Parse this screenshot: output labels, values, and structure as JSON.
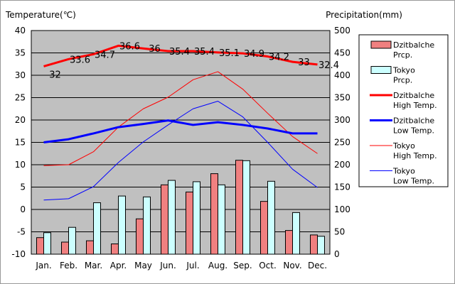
{
  "chart_data": {
    "type": "bar+line",
    "left_axis_title": "Temperature(℃)",
    "right_axis_title": "Precipitation(mm)",
    "categories": [
      "Jan.",
      "Feb.",
      "Mar.",
      "Apr.",
      "May",
      "Jun.",
      "Jul.",
      "Aug.",
      "Sep.",
      "Oct.",
      "Nov.",
      "Dec."
    ],
    "y_left": {
      "min": -10,
      "max": 40,
      "step": 5,
      "ticks": [
        "40",
        "35",
        "30",
        "25",
        "20",
        "15",
        "10",
        "5",
        "0",
        "-5",
        "-10"
      ]
    },
    "y_right": {
      "min": 0,
      "max": 500,
      "step": 50,
      "ticks": [
        "500",
        "450",
        "400",
        "350",
        "300",
        "250",
        "200",
        "150",
        "100",
        "50",
        "0"
      ]
    },
    "grid": true,
    "legend_placement": "right",
    "series": [
      {
        "name": "Dzitbalche Prcp.",
        "kind": "bar",
        "axis": "right",
        "color": "#f08080",
        "values": [
          37,
          27,
          30,
          23,
          79,
          155,
          139,
          180,
          210,
          118,
          53,
          43
        ]
      },
      {
        "name": "Tokyo Prcp.",
        "kind": "bar",
        "axis": "right",
        "color": "#ccffff",
        "values": [
          48,
          60,
          115,
          130,
          128,
          165,
          162,
          155,
          209,
          163,
          93,
          40
        ]
      },
      {
        "name": "Dzitbalche High Temp.",
        "kind": "line",
        "axis": "left",
        "color": "#ff0000",
        "width": 3,
        "values": [
          32,
          33.6,
          34.7,
          36.6,
          36,
          35.4,
          35.4,
          35.1,
          34.9,
          34.2,
          33,
          32.4
        ],
        "labels": [
          "32",
          "33.6",
          "34.7",
          "36.6",
          "36",
          "35.4",
          "35.4",
          "35.1",
          "34.9",
          "34.2",
          "33",
          "32.4"
        ]
      },
      {
        "name": "Dzitbalche Low Temp.",
        "kind": "line",
        "axis": "left",
        "color": "#0000ff",
        "width": 3,
        "values": [
          15,
          15.7,
          17,
          18.4,
          19.1,
          19.9,
          18.9,
          19.5,
          18.9,
          18.1,
          17,
          17
        ]
      },
      {
        "name": "Tokyo High Temp.",
        "kind": "line",
        "axis": "left",
        "color": "#ff0000",
        "width": 1,
        "values": [
          9.8,
          10,
          12.9,
          18.4,
          22.5,
          25.1,
          29,
          30.8,
          26.9,
          21.5,
          16.3,
          12.5
        ]
      },
      {
        "name": "Tokyo Low Temp.",
        "kind": "line",
        "axis": "left",
        "color": "#0000ff",
        "width": 1,
        "values": [
          2.1,
          2.4,
          5.1,
          10.5,
          15.1,
          18.9,
          22.5,
          24.2,
          20.7,
          15,
          9,
          4.9
        ]
      }
    ],
    "legend": [
      {
        "line1": "Dzitbalche",
        "line2": "Prcp.",
        "swatch": "bar",
        "color": "#f08080"
      },
      {
        "line1": "Tokyo",
        "line2": "Prcp.",
        "swatch": "bar",
        "color": "#ccffff"
      },
      {
        "line1": "Dzitbalche",
        "line2": "High Temp.",
        "swatch": "line",
        "color": "#ff0000",
        "width": 3
      },
      {
        "line1": "Dzitbalche",
        "line2": "Low Temp.",
        "swatch": "line",
        "color": "#0000ff",
        "width": 3
      },
      {
        "line1": "Tokyo",
        "line2": "High Temp.",
        "swatch": "line",
        "color": "#ff0000",
        "width": 1
      },
      {
        "line1": "Tokyo",
        "line2": "Low Temp.",
        "swatch": "line",
        "color": "#0000ff",
        "width": 1
      }
    ],
    "plot_background": "#c0c0c0"
  }
}
